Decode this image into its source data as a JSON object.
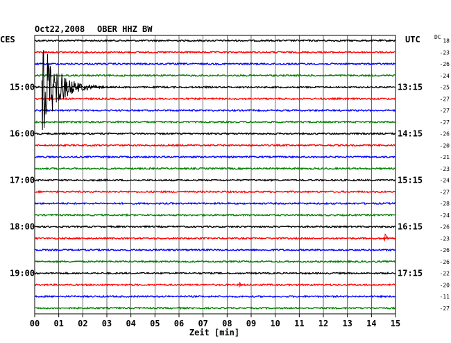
{
  "header": {
    "date": "Oct22,2008",
    "station": "OBER HHZ BW",
    "left_tz": "CES",
    "right_tz": "UTC",
    "dc_label": "DC"
  },
  "chart_data": {
    "type": "line",
    "title": "Oct22,2008   OBER HHZ BW",
    "xlabel": "Zeit [min]",
    "xlim": [
      0,
      15
    ],
    "x_ticks": [
      "00",
      "01",
      "02",
      "03",
      "04",
      "05",
      "06",
      "07",
      "08",
      "09",
      "10",
      "11",
      "12",
      "13",
      "14",
      "15"
    ],
    "grid": true,
    "trace_colors": [
      "#000000",
      "#ff0000",
      "#0000ff",
      "#008000"
    ],
    "left_time_labels": [
      {
        "row": 4,
        "label": "15:00"
      },
      {
        "row": 8,
        "label": "16:00"
      },
      {
        "row": 12,
        "label": "17:00"
      },
      {
        "row": 16,
        "label": "18:00"
      },
      {
        "row": 20,
        "label": "19:00"
      }
    ],
    "right_time_labels": [
      {
        "row": 4,
        "label": "13:15"
      },
      {
        "row": 8,
        "label": "14:15"
      },
      {
        "row": 12,
        "label": "15:15"
      },
      {
        "row": 16,
        "label": "16:15"
      },
      {
        "row": 20,
        "label": "17:15"
      }
    ],
    "dc_offsets": [
      "18",
      "-23",
      "-26",
      "-24",
      "-25",
      "-27",
      "-27",
      "-27",
      "-26",
      "-20",
      "-21",
      "-23",
      "-24",
      "-27",
      "-28",
      "-24",
      "-26",
      "-23",
      "-26",
      "-26",
      "-22",
      "-20",
      "-11",
      "-27"
    ],
    "events": [
      {
        "row": 4,
        "start_min": 0.3,
        "amplitude": "large",
        "duration_min": 3.0
      },
      {
        "row": 17,
        "start_min": 14.5,
        "amplitude": "medium",
        "duration_min": 0.5
      },
      {
        "row": 21,
        "start_min": 8.5,
        "amplitude": "small",
        "duration_min": 0.3
      }
    ]
  }
}
